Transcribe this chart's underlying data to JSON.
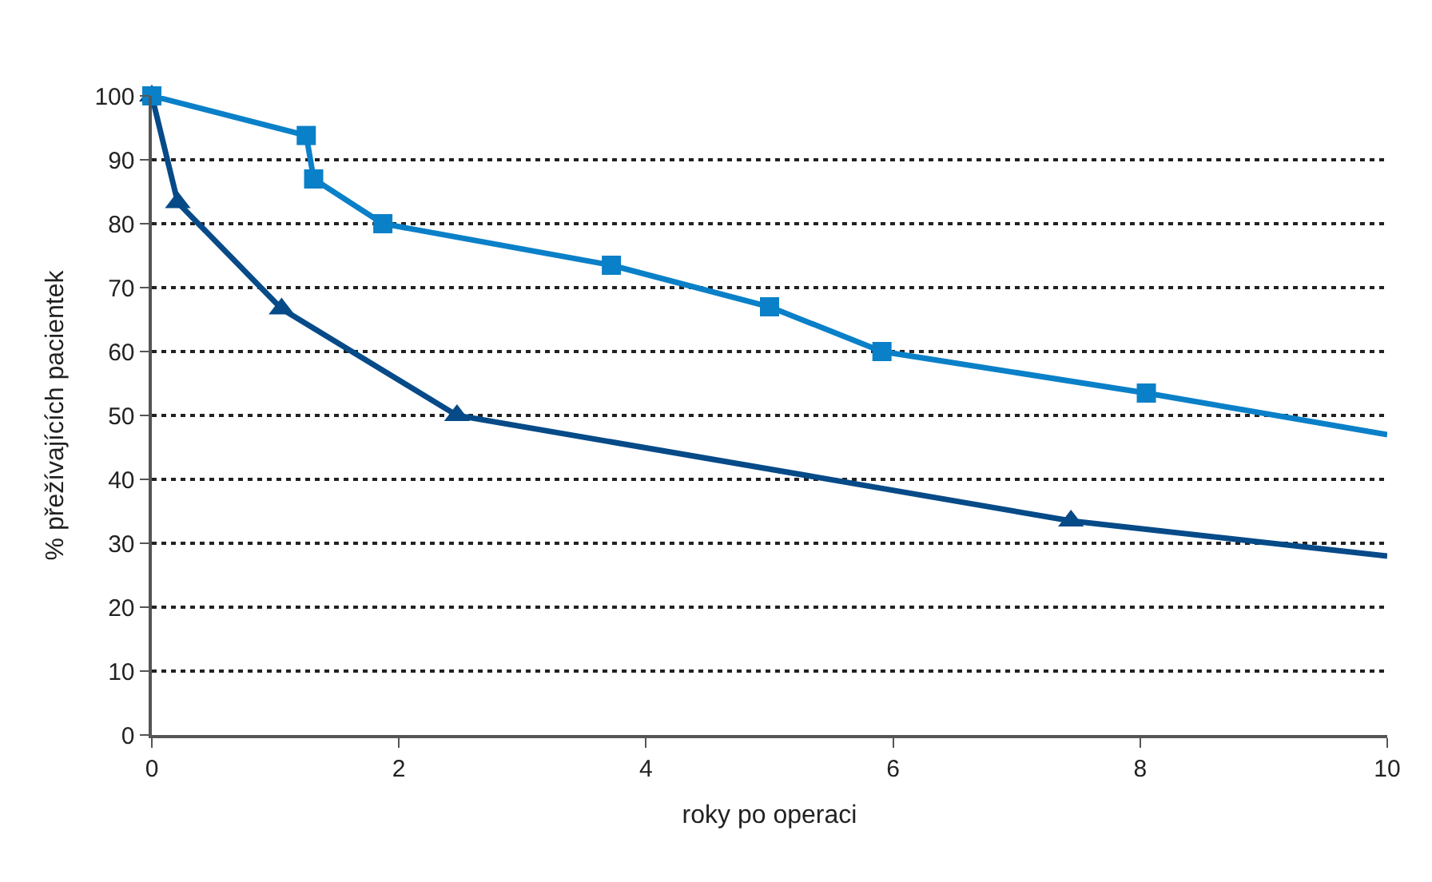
{
  "chart_data": {
    "type": "line",
    "xlabel": "roky po operaci",
    "ylabel": "% přežívajících pacientek",
    "xlim": [
      0,
      10
    ],
    "xticks": [
      0,
      2,
      4,
      6,
      8,
      10
    ],
    "ylim": [
      0,
      100
    ],
    "yticks": [
      0,
      10,
      20,
      30,
      40,
      50,
      60,
      70,
      80,
      90,
      100
    ],
    "grid": "y",
    "line_style": "solid",
    "series": [
      {
        "color": "#0a80c8",
        "marker": "square",
        "x": [
          0,
          1.25,
          1.31,
          1.87,
          3.72,
          5.0,
          5.91,
          8.05
        ],
        "values": [
          100,
          93.8,
          87,
          80,
          73.5,
          67,
          60,
          53.5
        ]
      },
      {
        "color": "#0a80c8",
        "marker": "none",
        "x": [
          8.05,
          10
        ],
        "values": [
          53.5,
          47
        ]
      },
      {
        "color": "#064a88",
        "marker": "triangle",
        "x": [
          0,
          0.21,
          1.05,
          2.47,
          7.44
        ],
        "values": [
          100,
          83.3,
          66.7,
          50,
          33.5
        ]
      },
      {
        "color": "#064a88",
        "marker": "none",
        "x": [
          7.44,
          10
        ],
        "values": [
          33.5,
          28
        ]
      }
    ]
  }
}
